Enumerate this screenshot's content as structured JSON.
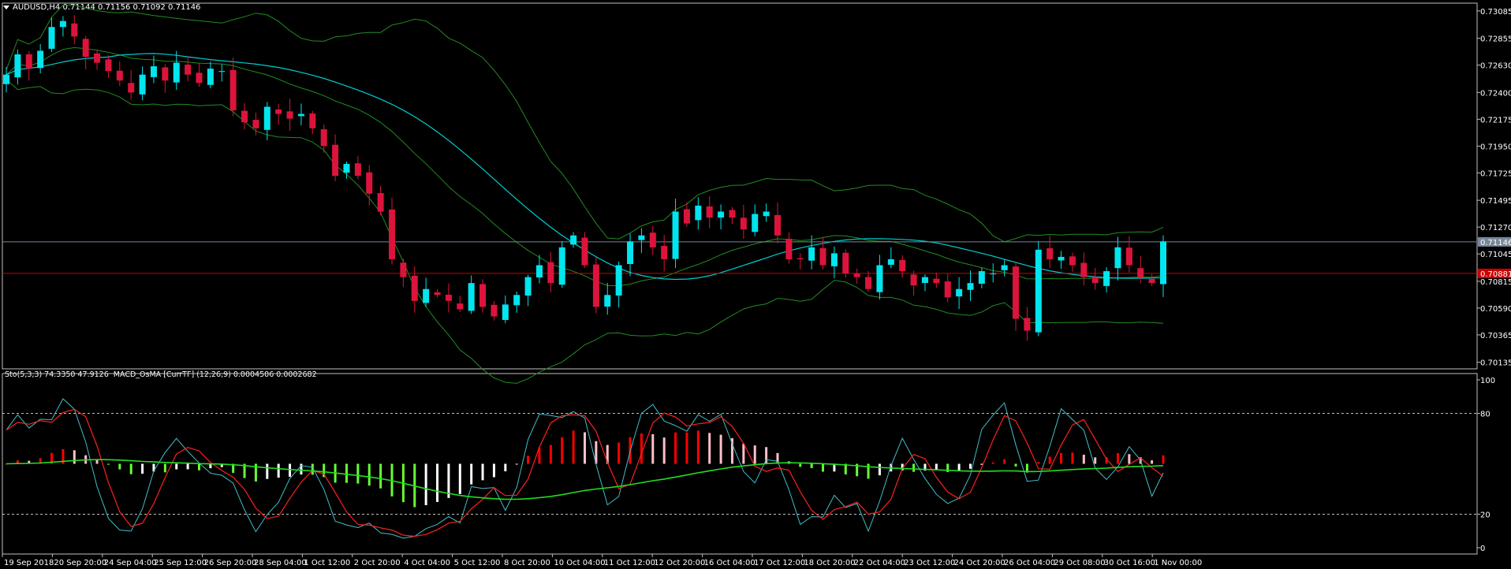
{
  "header": {
    "menu_icon": "triangle-down-icon",
    "symbol_text": "AUDUSD,H4  0.71144 0.71156 0.71092 0.71146"
  },
  "indicator_header": {
    "text": "Sto(5,3,3) 74.3350 47.9126  MACD_OsMA [CurrTF] (12,26,9) 0.0004506 0.0002682"
  },
  "colors": {
    "background": "#000000",
    "bull_candle": "#00e5ee",
    "bear_candle": "#dc143c",
    "bollinger": "#228b22",
    "moving_average": "#00ced1",
    "bid_line": "#778899",
    "red_line": "#cc0000",
    "stoch_main": "#40c0c8",
    "stoch_signal": "#ff2020",
    "macd_signal": "#22dd22",
    "osma_up": "#ff0000",
    "osma_up_fade": "#ffc0cb",
    "osma_down": "#66ff33",
    "osma_down_fade": "#ffffff",
    "text": "#ffffff",
    "frame": "#c0c0c0"
  },
  "chart_data": [
    {
      "type": "candlestick",
      "symbol": "AUDUSD",
      "timeframe": "H4",
      "ylim": [
        0.7008,
        0.7315
      ],
      "y_ticks": [
        "0.73085",
        "0.72855",
        "0.72630",
        "0.72400",
        "0.72175",
        "0.71950",
        "0.71725",
        "0.71495",
        "0.71270",
        "0.71045",
        "0.70815",
        "0.70590",
        "0.70365",
        "0.70135"
      ],
      "price_labels": [
        {
          "value": "0.71146",
          "price": 0.71146,
          "color": "#778899"
        },
        {
          "value": "0.70881",
          "price": 0.70881,
          "color": "#cc0000"
        }
      ],
      "x_labels": [
        "19 Sep 2018",
        "20 Sep 20:00",
        "24 Sep 04:00",
        "25 Sep 12:00",
        "26 Sep 20:00",
        "28 Sep 04:00",
        "1 Oct 12:00",
        "2 Oct 20:00",
        "4 Oct 04:00",
        "5 Oct 12:00",
        "8 Oct 20:00",
        "10 Oct 04:00",
        "11 Oct 12:00",
        "12 Oct 20:00",
        "16 Oct 04:00",
        "17 Oct 12:00",
        "18 Oct 20:00",
        "22 Oct 04:00",
        "23 Oct 12:00",
        "24 Oct 20:00",
        "26 Oct 04:00",
        "29 Oct 08:00",
        "30 Oct 16:00",
        "1 Nov 00:00"
      ],
      "close_path": [
        0.7255,
        0.7272,
        0.726,
        0.7275,
        0.7295,
        0.73,
        0.7287,
        0.727,
        0.7265,
        0.7258,
        0.725,
        0.724,
        0.7255,
        0.7262,
        0.725,
        0.7265,
        0.7255,
        0.7248,
        0.726,
        0.7258,
        0.7225,
        0.7215,
        0.721,
        0.7228,
        0.7222,
        0.7218,
        0.7222,
        0.721,
        0.7195,
        0.717,
        0.718,
        0.717,
        0.7155,
        0.714,
        0.71,
        0.7085,
        0.7065,
        0.7075,
        0.707,
        0.7065,
        0.7058,
        0.708,
        0.706,
        0.7052,
        0.7062,
        0.707,
        0.7085,
        0.7095,
        0.708,
        0.711,
        0.712,
        0.7095,
        0.706,
        0.707,
        0.7095,
        0.7115,
        0.712,
        0.711,
        0.71,
        0.714,
        0.713,
        0.7145,
        0.7135,
        0.714,
        0.7135,
        0.7125,
        0.7138,
        0.714,
        0.712,
        0.71,
        0.71,
        0.711,
        0.7095,
        0.7105,
        0.7088,
        0.7085,
        0.7075,
        0.7095,
        0.71,
        0.709,
        0.7078,
        0.7085,
        0.708,
        0.7068,
        0.7075,
        0.708,
        0.709,
        0.7088,
        0.7095,
        0.705,
        0.704,
        0.7108,
        0.71,
        0.7102,
        0.7095,
        0.7085,
        0.708,
        0.709,
        0.711,
        0.7095,
        0.7085,
        0.708,
        0.7115
      ]
    },
    {
      "type": "oscillator",
      "name": "Sto(5,3,3) + MACD_OsMA",
      "ylim": [
        0,
        100
      ],
      "y_ticks": [
        "100",
        "80",
        "20",
        "0"
      ],
      "levels": [
        80,
        20
      ],
      "stochastic_main": 74.335,
      "stochastic_signal": 47.9126,
      "macd_osma_values": [
        0.0004506,
        0.0002682
      ]
    }
  ]
}
